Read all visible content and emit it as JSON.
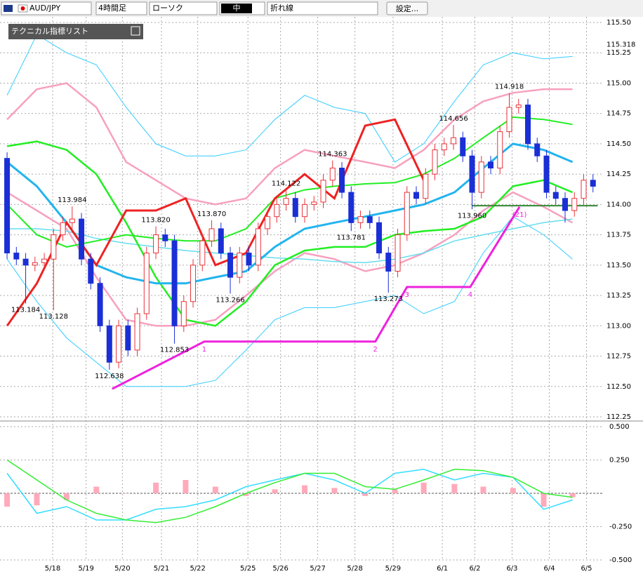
{
  "toolbar": {
    "pair": "AUD/JPY",
    "timeframe": "4時間足",
    "style": "ローソク",
    "size": "中",
    "line_mode": "折れ線",
    "settings": "設定...",
    "panel": "テクニカル指標リスト"
  },
  "chart_data": [
    {
      "type": "candlestick",
      "x": [
        0,
        1,
        2,
        3,
        4,
        5,
        6,
        7,
        8,
        9,
        10,
        11,
        12,
        13,
        14,
        15,
        16,
        17,
        18,
        19,
        20,
        21,
        22,
        23,
        24,
        25,
        26,
        27,
        28,
        29,
        30,
        31,
        32,
        33,
        34,
        35,
        36,
        37,
        38,
        39,
        40,
        41,
        42,
        43,
        44,
        45,
        46,
        47,
        48,
        49,
        50,
        51,
        52,
        53,
        54,
        55,
        56,
        57,
        58,
        59,
        60,
        61,
        62,
        63
      ],
      "open": [
        114.38,
        113.6,
        113.55,
        113.5,
        113.52,
        113.55,
        113.75,
        113.85,
        113.88,
        113.55,
        113.35,
        113.0,
        112.7,
        113.0,
        112.8,
        113.1,
        113.6,
        113.75,
        113.7,
        113.0,
        113.2,
        113.5,
        113.7,
        113.8,
        113.6,
        113.4,
        113.6,
        113.5,
        113.8,
        113.9,
        114.0,
        114.05,
        113.9,
        114.0,
        114.02,
        114.2,
        114.3,
        114.1,
        113.85,
        113.9,
        113.85,
        113.6,
        113.45,
        113.75,
        114.1,
        114.05,
        114.25,
        114.45,
        114.5,
        114.55,
        114.4,
        114.1,
        114.35,
        114.3,
        114.6,
        114.8,
        114.82,
        114.5,
        114.4,
        114.1,
        114.05,
        113.95,
        114.05,
        114.2
      ],
      "high": [
        114.43,
        113.65,
        113.6,
        113.57,
        113.6,
        113.8,
        113.9,
        113.984,
        113.93,
        113.6,
        113.4,
        113.05,
        113.05,
        113.05,
        113.15,
        113.65,
        113.82,
        113.8,
        113.75,
        113.25,
        113.55,
        113.75,
        113.87,
        113.85,
        113.65,
        113.65,
        113.65,
        113.85,
        113.95,
        114.05,
        114.122,
        114.1,
        114.05,
        114.07,
        114.25,
        114.363,
        114.35,
        114.15,
        113.95,
        113.95,
        113.9,
        113.65,
        113.8,
        114.15,
        114.15,
        114.3,
        114.5,
        114.55,
        114.656,
        114.6,
        114.45,
        114.4,
        114.4,
        114.65,
        114.918,
        114.87,
        114.87,
        114.55,
        114.45,
        114.15,
        114.1,
        114.1,
        114.25,
        114.25
      ],
      "low": [
        113.55,
        113.5,
        113.184,
        113.45,
        113.47,
        113.128,
        113.7,
        113.8,
        113.5,
        113.3,
        112.95,
        112.638,
        112.65,
        112.75,
        112.75,
        113.05,
        113.55,
        113.65,
        112.853,
        112.95,
        113.15,
        113.45,
        113.65,
        113.55,
        113.266,
        113.35,
        113.45,
        113.45,
        113.75,
        113.85,
        113.95,
        113.85,
        113.85,
        113.95,
        113.97,
        114.15,
        114.05,
        113.781,
        113.8,
        113.8,
        113.55,
        113.273,
        113.4,
        113.7,
        114.0,
        114.0,
        114.2,
        114.4,
        114.45,
        114.35,
        113.96,
        114.05,
        114.25,
        114.25,
        114.55,
        114.75,
        114.45,
        114.35,
        114.05,
        114.0,
        113.85,
        113.9,
        114.0,
        114.1
      ],
      "close": [
        113.6,
        113.55,
        113.5,
        113.52,
        113.55,
        113.75,
        113.85,
        113.88,
        113.55,
        113.35,
        113.0,
        112.7,
        113.0,
        112.8,
        113.1,
        113.6,
        113.75,
        113.7,
        113.0,
        113.2,
        113.5,
        113.7,
        113.8,
        113.6,
        113.4,
        113.6,
        113.5,
        113.8,
        113.9,
        114.0,
        114.05,
        113.9,
        114.0,
        114.02,
        114.2,
        114.3,
        114.1,
        113.85,
        113.9,
        113.85,
        113.6,
        113.45,
        113.75,
        114.1,
        114.05,
        114.25,
        114.45,
        114.5,
        114.55,
        114.4,
        114.1,
        114.35,
        114.3,
        114.6,
        114.8,
        114.82,
        114.5,
        114.4,
        114.1,
        114.05,
        113.95,
        114.05,
        114.2,
        114.15
      ],
      "up_color": "#e8333a",
      "down_color": "#1a2fd6",
      "xlim": [
        -0.76,
        64.15
      ],
      "xticks": [
        {
          "value": 4.9,
          "label": "5/18"
        },
        {
          "value": 8.5,
          "label": "5/19"
        },
        {
          "value": 12.4,
          "label": "5/20"
        },
        {
          "value": 16.6,
          "label": "5/21"
        },
        {
          "value": 20.5,
          "label": "5/22"
        },
        {
          "value": 25.9,
          "label": "5/25"
        },
        {
          "value": 29.4,
          "label": "5/26"
        },
        {
          "value": 33.4,
          "label": "5/27"
        },
        {
          "value": 37.4,
          "label": "5/28"
        },
        {
          "value": 41.5,
          "label": "5/29"
        },
        {
          "value": 46.8,
          "label": "6/1"
        },
        {
          "value": 50.3,
          "label": "6/2"
        },
        {
          "value": 54.3,
          "label": "6/3"
        },
        {
          "value": 58.3,
          "label": "6/4"
        },
        {
          "value": 62.3,
          "label": "6/5"
        }
      ],
      "ylim": [
        112.25,
        115.5
      ],
      "yticks": [
        {
          "value": 115.5,
          "label": "115.50"
        },
        115.25,
        {
          "value": 115.0,
          "label": "115.00"
        },
        114.75,
        {
          "value": 114.5,
          "label": "114.50"
        },
        114.25,
        {
          "value": 114.0,
          "label": "114.00"
        },
        113.75,
        {
          "value": 113.5,
          "label": "113.50"
        },
        113.25,
        {
          "value": 113.0,
          "label": "113.00"
        },
        112.75,
        {
          "value": 112.5,
          "label": "112.50"
        },
        112.25
      ],
      "grid": true,
      "price_marker": 115.318,
      "line_x": [
        0,
        3.2,
        6.4,
        9.6,
        12.8,
        16,
        19.2,
        22.4,
        25.7,
        28.8,
        32,
        35.2,
        38.5,
        41.7,
        44.8,
        48.1,
        51.2,
        54.4,
        57.7,
        60.8
      ],
      "lines": [
        {
          "color": "#33ccff",
          "width": 1,
          "values": [
            114.9,
            115.4,
            115.25,
            115.15,
            114.8,
            114.5,
            114.4,
            114.4,
            114.45,
            114.7,
            114.9,
            114.8,
            114.75,
            114.35,
            114.5,
            114.85,
            115.15,
            115.25,
            115.2,
            115.22
          ]
        },
        {
          "color": "#33ccff",
          "width": 1,
          "values": [
            113.55,
            113.2,
            112.9,
            112.7,
            112.5,
            112.5,
            112.5,
            112.55,
            112.8,
            113.05,
            113.15,
            113.15,
            113.2,
            113.25,
            113.1,
            113.2,
            113.6,
            113.9,
            113.75,
            113.55
          ]
        },
        {
          "color": "#f7a1bf",
          "width": 2.5,
          "values": [
            114.7,
            114.95,
            115.0,
            114.8,
            114.35,
            114.2,
            114.05,
            114.0,
            114.05,
            114.3,
            114.45,
            114.4,
            114.35,
            114.3,
            114.45,
            114.7,
            114.85,
            114.92,
            114.95,
            114.95
          ]
        },
        {
          "color": "#f7a1bf",
          "width": 2.5,
          "values": [
            114.1,
            113.95,
            113.8,
            113.4,
            113.05,
            113.0,
            113.0,
            113.05,
            113.25,
            113.45,
            113.6,
            113.55,
            113.45,
            113.5,
            113.6,
            113.75,
            113.95,
            114.1,
            113.98,
            113.85
          ]
        },
        {
          "color": "#66ddee",
          "width": 1.5,
          "values": [
            113.8,
            113.8,
            113.78,
            113.72,
            113.68,
            113.65,
            113.62,
            113.6,
            113.58,
            113.56,
            113.55,
            113.53,
            113.52,
            113.55,
            113.6,
            113.7,
            113.75,
            113.8,
            113.85,
            113.88
          ]
        },
        {
          "color": "#22ee22",
          "width": 2.5,
          "values": [
            114.48,
            114.52,
            114.45,
            114.25,
            113.85,
            113.4,
            113.05,
            113.0,
            113.2,
            113.5,
            113.62,
            113.65,
            113.65,
            113.75,
            113.78,
            113.8,
            113.9,
            114.15,
            114.2,
            114.1
          ]
        },
        {
          "color": "#22ee22",
          "width": 2,
          "values": [
            114.0,
            113.75,
            113.65,
            113.7,
            113.75,
            113.72,
            113.7,
            113.7,
            113.8,
            114.05,
            114.12,
            114.15,
            114.17,
            114.18,
            114.25,
            114.38,
            114.55,
            114.72,
            114.7,
            114.66
          ]
        },
        {
          "color": "#22b4ee",
          "width": 3,
          "values": [
            114.35,
            114.15,
            113.85,
            113.5,
            113.4,
            113.35,
            113.35,
            113.4,
            113.45,
            113.65,
            113.8,
            113.85,
            113.9,
            113.95,
            114.0,
            114.1,
            114.3,
            114.5,
            114.45,
            114.35
          ]
        },
        {
          "color": "#ee2222",
          "width": 3,
          "values": [
            113.0,
            113.35,
            113.85,
            113.5,
            113.95,
            113.95,
            114.05,
            113.5,
            113.6,
            114.05,
            114.25,
            114.05,
            114.65,
            114.7,
            114.2,
            null,
            null,
            null,
            null,
            null
          ]
        }
      ],
      "level": {
        "y": 113.99,
        "x0": 50,
        "x1": 63.5,
        "color": "#338833"
      },
      "zigzag": {
        "color": "#ee22dd",
        "x": [
          11.3,
          21.2,
          39.6,
          43.0,
          49.8,
          55.1
        ],
        "y": [
          112.48,
          112.87,
          112.87,
          113.32,
          113.32,
          113.98
        ],
        "labels": [
          null,
          "1",
          "2",
          "3",
          "4",
          "(21)"
        ]
      },
      "annotations": [
        {
          "x": 7,
          "value": 113.984,
          "label": "113.984"
        },
        {
          "x": 2,
          "value": 113.184,
          "label": "113.184"
        },
        {
          "x": 5,
          "value": 113.128,
          "label": "113.128"
        },
        {
          "x": 11,
          "value": 112.638,
          "label": "112.638"
        },
        {
          "x": 16,
          "value": 113.82,
          "label": "113.820"
        },
        {
          "x": 18,
          "value": 112.853,
          "label": "112.853"
        },
        {
          "x": 22,
          "value": 113.87,
          "label": "113.870"
        },
        {
          "x": 24,
          "value": 113.266,
          "label": "113.266"
        },
        {
          "x": 30,
          "value": 114.122,
          "label": "114.122"
        },
        {
          "x": 37,
          "value": 113.781,
          "label": "113.781"
        },
        {
          "x": 35,
          "value": 114.363,
          "label": "114.363"
        },
        {
          "x": 41,
          "value": 113.273,
          "label": "113.273"
        },
        {
          "x": 48,
          "value": 114.656,
          "label": "114.656"
        },
        {
          "x": 50,
          "value": 113.96,
          "label": "113.960"
        },
        {
          "x": 54,
          "value": 114.918,
          "label": "114.918"
        }
      ]
    },
    {
      "type": "macd",
      "xlim": [
        -0.76,
        64.15
      ],
      "x": [
        0,
        3.2,
        6.4,
        9.6,
        12.8,
        16,
        19.2,
        22.4,
        25.7,
        28.8,
        32,
        35.2,
        38.5,
        41.7,
        44.8,
        48.1,
        51.2,
        54.4,
        57.7,
        60.8
      ],
      "ylim": [
        -0.5,
        0.5
      ],
      "yticks": [
        {
          "value": 0.5,
          "label": "0.500"
        },
        {
          "value": 0.25,
          "label": "0.250"
        },
        {
          "value": -0.25,
          "label": "-0.250"
        },
        {
          "value": -0.5,
          "label": "-0.500"
        }
      ],
      "histogram": {
        "color": "#ffaabb",
        "values": [
          -0.1,
          -0.09,
          -0.05,
          0.05,
          0.0,
          0.08,
          0.1,
          0.05,
          -0.02,
          0.03,
          0.06,
          0.04,
          -0.02,
          0.03,
          0.08,
          0.07,
          0.05,
          0.04,
          -0.1,
          -0.03
        ]
      },
      "series": [
        {
          "color": "#33ddff",
          "values": [
            0.15,
            -0.15,
            -0.1,
            -0.2,
            -0.2,
            -0.12,
            -0.1,
            -0.05,
            0.05,
            0.1,
            0.15,
            0.1,
            0.0,
            0.15,
            0.18,
            0.1,
            0.15,
            0.12,
            -0.12,
            -0.05
          ]
        },
        {
          "color": "#33ee33",
          "values": [
            0.25,
            0.1,
            -0.05,
            -0.15,
            -0.2,
            -0.22,
            -0.18,
            -0.1,
            0.0,
            0.08,
            0.15,
            0.15,
            0.05,
            0.03,
            0.1,
            0.18,
            0.17,
            0.12,
            0.0,
            -0.03
          ]
        }
      ]
    }
  ]
}
